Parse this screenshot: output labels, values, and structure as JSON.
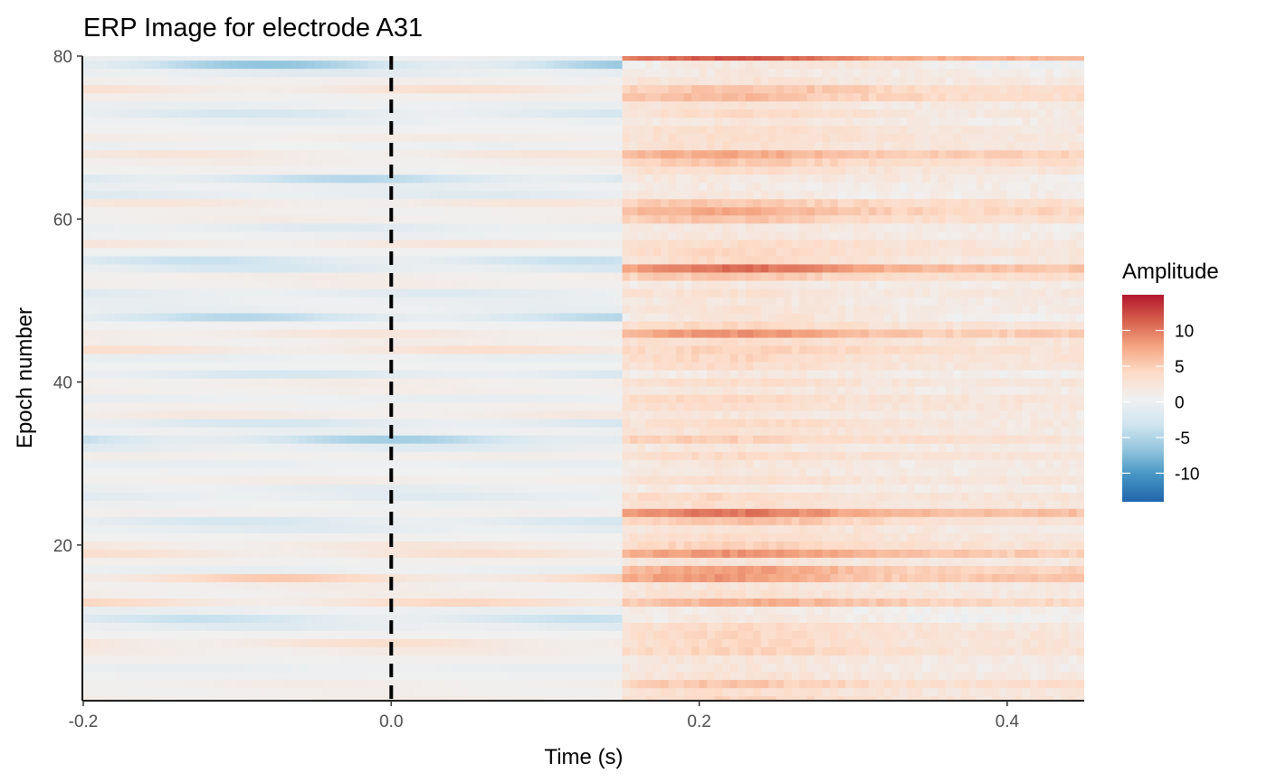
{
  "chart_data": {
    "type": "heatmap",
    "title": "ERP Image for electrode A31",
    "xlabel": "Time (s)",
    "ylabel": "Epoch number",
    "xlim": [
      -0.2,
      0.45
    ],
    "ylim": [
      1,
      80
    ],
    "x_ticks": [
      -0.2,
      0.0,
      0.2,
      0.4
    ],
    "x_tick_labels": [
      "-0.2",
      "0.0",
      "0.2",
      "0.4"
    ],
    "y_ticks": [
      20,
      40,
      60,
      80
    ],
    "y_tick_labels": [
      "20",
      "40",
      "60",
      "80"
    ],
    "epochs": 80,
    "stimulus_marker": {
      "x": 0.0,
      "style": "dashed",
      "color": "#000000"
    },
    "grid": false,
    "legend": {
      "title": "Amplitude",
      "position": "right",
      "range": [
        -14,
        15
      ],
      "ticks": [
        10,
        5,
        0,
        -5,
        -10
      ],
      "tick_labels": [
        "10",
        "5",
        "0",
        "-5",
        "-10"
      ]
    },
    "colorscale": [
      "#2166ac",
      "#4393c3",
      "#92c5de",
      "#d1e5f0",
      "#f0f0f0",
      "#fddbc7",
      "#f4a582",
      "#d6604d",
      "#b2182b"
    ],
    "epoch_profiles": [
      {
        "epoch": 2,
        "base": 0.5,
        "post": 3
      },
      {
        "epoch": 3,
        "base": 1,
        "post": 5
      },
      {
        "epoch": 5,
        "base": -1,
        "post": 2
      },
      {
        "epoch": 7,
        "base": 1.5,
        "post": 4
      },
      {
        "epoch": 8,
        "base": 3,
        "post": 3
      },
      {
        "epoch": 10,
        "base": -2,
        "post": 4
      },
      {
        "epoch": 11,
        "base": -4,
        "post": 2
      },
      {
        "epoch": 13,
        "base": 4,
        "post": 6
      },
      {
        "epoch": 15,
        "base": 1,
        "post": 2
      },
      {
        "epoch": 16,
        "base": 5,
        "post": 7
      },
      {
        "epoch": 17,
        "base": -1,
        "post": 8
      },
      {
        "epoch": 19,
        "base": 3,
        "post": 8
      },
      {
        "epoch": 20,
        "base": 2,
        "post": 4
      },
      {
        "epoch": 22,
        "base": -2,
        "post": 3
      },
      {
        "epoch": 23,
        "base": -3,
        "post": 6
      },
      {
        "epoch": 24,
        "base": 0.5,
        "post": 10
      },
      {
        "epoch": 26,
        "base": -2,
        "post": 4
      },
      {
        "epoch": 28,
        "base": 1,
        "post": 3
      },
      {
        "epoch": 30,
        "base": -1,
        "post": 2
      },
      {
        "epoch": 32,
        "base": -2,
        "post": 2
      },
      {
        "epoch": 33,
        "base": -6,
        "post": 6
      },
      {
        "epoch": 35,
        "base": -3,
        "post": 4
      },
      {
        "epoch": 37,
        "base": 0.5,
        "post": 3
      },
      {
        "epoch": 38,
        "base": -1,
        "post": 4
      },
      {
        "epoch": 40,
        "base": 1,
        "post": 3
      },
      {
        "epoch": 41,
        "base": -3,
        "post": 2
      },
      {
        "epoch": 43,
        "base": -1,
        "post": 4
      },
      {
        "epoch": 44,
        "base": 3,
        "post": 4
      },
      {
        "epoch": 46,
        "base": 2,
        "post": 8
      },
      {
        "epoch": 48,
        "base": -5,
        "post": 3
      },
      {
        "epoch": 50,
        "base": -1,
        "post": 2
      },
      {
        "epoch": 51,
        "base": -2,
        "post": 3
      },
      {
        "epoch": 53,
        "base": 1,
        "post": 5
      },
      {
        "epoch": 54,
        "base": -3,
        "post": 11
      },
      {
        "epoch": 55,
        "base": -4,
        "post": 4
      },
      {
        "epoch": 57,
        "base": 2,
        "post": 3
      },
      {
        "epoch": 59,
        "base": -2,
        "post": 2
      },
      {
        "epoch": 60,
        "base": 1,
        "post": 5
      },
      {
        "epoch": 61,
        "base": 0.5,
        "post": 7
      },
      {
        "epoch": 62,
        "base": 2,
        "post": 5
      },
      {
        "epoch": 63,
        "base": -2,
        "post": 2
      },
      {
        "epoch": 65,
        "base": -5,
        "post": 3
      },
      {
        "epoch": 67,
        "base": 1,
        "post": 5
      },
      {
        "epoch": 68,
        "base": 2,
        "post": 7
      },
      {
        "epoch": 70,
        "base": 1,
        "post": 3
      },
      {
        "epoch": 72,
        "base": -1,
        "post": 2
      },
      {
        "epoch": 73,
        "base": -3,
        "post": 4
      },
      {
        "epoch": 75,
        "base": 0.5,
        "post": 6
      },
      {
        "epoch": 76,
        "base": 3,
        "post": 5
      },
      {
        "epoch": 78,
        "base": -2,
        "post": 2
      },
      {
        "epoch": 79,
        "base": -7,
        "post": 3
      },
      {
        "epoch": 80,
        "base": -1,
        "post": 12
      }
    ]
  }
}
